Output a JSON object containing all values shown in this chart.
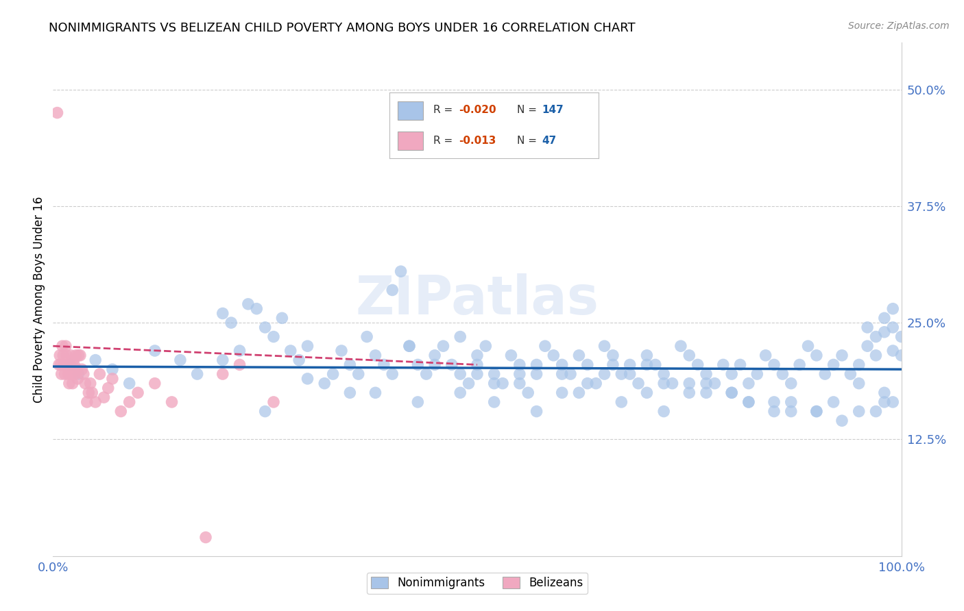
{
  "title": "NONIMMIGRANTS VS BELIZEAN CHILD POVERTY AMONG BOYS UNDER 16 CORRELATION CHART",
  "source": "Source: ZipAtlas.com",
  "ylabel": "Child Poverty Among Boys Under 16",
  "xlim": [
    0,
    1.0
  ],
  "ylim": [
    0,
    0.55
  ],
  "ytick_right_labels": [
    "12.5%",
    "25.0%",
    "37.5%",
    "50.0%"
  ],
  "ytick_right_values": [
    0.125,
    0.25,
    0.375,
    0.5
  ],
  "blue_R": "-0.020",
  "blue_N": "147",
  "pink_R": "-0.013",
  "pink_N": "47",
  "blue_color": "#a8c4e8",
  "pink_color": "#f0a8c0",
  "blue_line_color": "#1a5fa8",
  "pink_line_color": "#d04070",
  "watermark": "ZIPatlas",
  "blue_scatter_x": [
    0.02,
    0.03,
    0.05,
    0.07,
    0.09,
    0.12,
    0.15,
    0.17,
    0.2,
    0.21,
    0.22,
    0.23,
    0.24,
    0.25,
    0.26,
    0.27,
    0.28,
    0.29,
    0.3,
    0.32,
    0.33,
    0.34,
    0.35,
    0.36,
    0.37,
    0.38,
    0.39,
    0.4,
    0.41,
    0.42,
    0.43,
    0.44,
    0.45,
    0.46,
    0.47,
    0.48,
    0.49,
    0.5,
    0.51,
    0.52,
    0.53,
    0.54,
    0.55,
    0.56,
    0.57,
    0.58,
    0.59,
    0.6,
    0.61,
    0.62,
    0.63,
    0.64,
    0.65,
    0.66,
    0.67,
    0.68,
    0.69,
    0.7,
    0.71,
    0.72,
    0.73,
    0.74,
    0.75,
    0.76,
    0.77,
    0.78,
    0.79,
    0.8,
    0.81,
    0.82,
    0.83,
    0.84,
    0.85,
    0.86,
    0.87,
    0.88,
    0.89,
    0.9,
    0.91,
    0.92,
    0.93,
    0.94,
    0.95,
    0.96,
    0.97,
    0.98,
    0.99,
    1.0,
    0.4,
    0.42,
    0.45,
    0.48,
    0.5,
    0.52,
    0.55,
    0.57,
    0.6,
    0.63,
    0.66,
    0.68,
    0.7,
    0.72,
    0.75,
    0.77,
    0.8,
    0.82,
    0.85,
    0.87,
    0.9,
    0.93,
    0.95,
    0.98,
    0.2,
    0.3,
    0.35,
    0.5,
    0.55,
    0.6,
    0.65,
    0.7,
    0.75,
    0.8,
    0.85,
    0.9,
    0.95,
    0.98,
    0.99,
    0.25,
    0.38,
    0.43,
    0.48,
    0.52,
    0.57,
    0.62,
    0.67,
    0.72,
    0.77,
    0.82,
    0.87,
    0.92,
    0.97,
    0.99,
    1.0,
    0.96,
    0.97,
    0.98,
    0.99
  ],
  "blue_scatter_y": [
    0.205,
    0.195,
    0.21,
    0.2,
    0.185,
    0.22,
    0.21,
    0.195,
    0.26,
    0.25,
    0.22,
    0.27,
    0.265,
    0.245,
    0.235,
    0.255,
    0.22,
    0.21,
    0.225,
    0.185,
    0.195,
    0.22,
    0.205,
    0.195,
    0.235,
    0.215,
    0.205,
    0.285,
    0.305,
    0.225,
    0.205,
    0.195,
    0.215,
    0.225,
    0.205,
    0.235,
    0.185,
    0.205,
    0.225,
    0.195,
    0.185,
    0.215,
    0.205,
    0.175,
    0.195,
    0.225,
    0.215,
    0.205,
    0.195,
    0.215,
    0.205,
    0.185,
    0.225,
    0.215,
    0.195,
    0.205,
    0.185,
    0.215,
    0.205,
    0.195,
    0.185,
    0.225,
    0.215,
    0.205,
    0.195,
    0.185,
    0.205,
    0.195,
    0.205,
    0.185,
    0.195,
    0.215,
    0.205,
    0.195,
    0.185,
    0.205,
    0.225,
    0.215,
    0.195,
    0.205,
    0.215,
    0.195,
    0.205,
    0.225,
    0.215,
    0.255,
    0.245,
    0.235,
    0.195,
    0.225,
    0.205,
    0.195,
    0.215,
    0.185,
    0.195,
    0.205,
    0.195,
    0.185,
    0.205,
    0.195,
    0.175,
    0.185,
    0.175,
    0.185,
    0.175,
    0.165,
    0.155,
    0.165,
    0.155,
    0.145,
    0.155,
    0.165,
    0.21,
    0.19,
    0.175,
    0.195,
    0.185,
    0.175,
    0.195,
    0.205,
    0.185,
    0.175,
    0.165,
    0.155,
    0.185,
    0.175,
    0.165,
    0.155,
    0.175,
    0.165,
    0.175,
    0.165,
    0.155,
    0.175,
    0.165,
    0.155,
    0.175,
    0.165,
    0.155,
    0.165,
    0.155,
    0.265,
    0.215,
    0.245,
    0.235,
    0.24,
    0.22
  ],
  "pink_scatter_x": [
    0.005,
    0.007,
    0.008,
    0.009,
    0.01,
    0.011,
    0.012,
    0.013,
    0.014,
    0.015,
    0.016,
    0.017,
    0.018,
    0.019,
    0.02,
    0.021,
    0.022,
    0.023,
    0.024,
    0.025,
    0.026,
    0.027,
    0.028,
    0.029,
    0.03,
    0.032,
    0.034,
    0.036,
    0.038,
    0.04,
    0.042,
    0.044,
    0.046,
    0.05,
    0.055,
    0.06,
    0.065,
    0.07,
    0.08,
    0.09,
    0.1,
    0.12,
    0.14,
    0.18,
    0.2,
    0.22,
    0.26
  ],
  "pink_scatter_y": [
    0.475,
    0.205,
    0.215,
    0.205,
    0.195,
    0.225,
    0.215,
    0.205,
    0.195,
    0.225,
    0.215,
    0.205,
    0.195,
    0.185,
    0.205,
    0.215,
    0.195,
    0.185,
    0.21,
    0.205,
    0.195,
    0.215,
    0.2,
    0.19,
    0.215,
    0.215,
    0.2,
    0.195,
    0.185,
    0.165,
    0.175,
    0.185,
    0.175,
    0.165,
    0.195,
    0.17,
    0.18,
    0.19,
    0.155,
    0.165,
    0.175,
    0.185,
    0.165,
    0.02,
    0.195,
    0.205,
    0.165
  ]
}
